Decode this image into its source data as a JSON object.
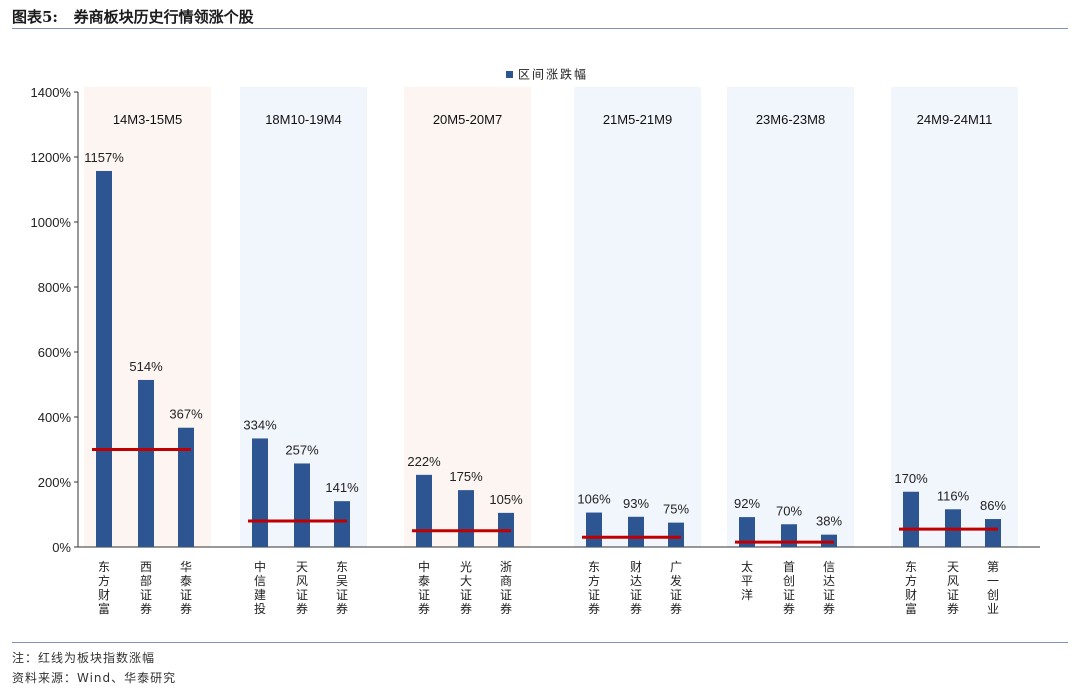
{
  "header": {
    "title": "图表5:   券商板块历史行情领涨个股"
  },
  "footer": {
    "note": "注：红线为板块指数涨幅",
    "source": "资料来源：Wind、华泰研究"
  },
  "colors": {
    "bar": "#2c5592",
    "index_line": "#c00000",
    "rule": "#7f95b7"
  },
  "chart_data": {
    "type": "bar",
    "legend": {
      "label": "区间涨跌幅",
      "position": "top-center"
    },
    "ylabel": "",
    "ylim": [
      0,
      1400
    ],
    "yticks": [
      0,
      200,
      400,
      600,
      800,
      1000,
      1200,
      1400
    ],
    "ytick_labels": [
      "0%",
      "200%",
      "400%",
      "600%",
      "800%",
      "1000%",
      "1200%",
      "1400%"
    ],
    "value_suffix": "%",
    "groups": [
      {
        "period": "14M3-15M5",
        "shade": "#fdf5f1",
        "index_change": 300,
        "stocks": [
          {
            "name": "东方财富",
            "value": 1157,
            "label": "1157%"
          },
          {
            "name": "西部证券",
            "value": 514,
            "label": "514%"
          },
          {
            "name": "华泰证券",
            "value": 367,
            "label": "367%"
          }
        ]
      },
      {
        "period": "18M10-19M4",
        "shade": "#f1f6fc",
        "index_change": 80,
        "stocks": [
          {
            "name": "中信建投",
            "value": 334,
            "label": "334%"
          },
          {
            "name": "天风证券",
            "value": 257,
            "label": "257%"
          },
          {
            "name": "东吴证券",
            "value": 141,
            "label": "141%"
          }
        ]
      },
      {
        "period": "20M5-20M7",
        "shade": "#fdf5f1",
        "index_change": 50,
        "stocks": [
          {
            "name": "中泰证券",
            "value": 222,
            "label": "222%"
          },
          {
            "name": "光大证券",
            "value": 175,
            "label": "175%"
          },
          {
            "name": "浙商证券",
            "value": 105,
            "label": "105%"
          }
        ]
      },
      {
        "period": "21M5-21M9",
        "shade": "#f1f6fc",
        "index_change": 30,
        "stocks": [
          {
            "name": "东方证券",
            "value": 106,
            "label": "106%"
          },
          {
            "name": "财达证券",
            "value": 93,
            "label": "93%"
          },
          {
            "name": "广发证券",
            "value": 75,
            "label": "75%"
          }
        ]
      },
      {
        "period": "23M6-23M8",
        "shade": "#f1f6fc",
        "index_change": 15,
        "stocks": [
          {
            "name": "太平洋",
            "value": 92,
            "label": "92%"
          },
          {
            "name": "首创证券",
            "value": 70,
            "label": "70%"
          },
          {
            "name": "信达证券",
            "value": 38,
            "label": "38%"
          }
        ]
      },
      {
        "period": "24M9-24M11",
        "shade": "#f1f6fc",
        "index_change": 55,
        "stocks": [
          {
            "name": "东方财富",
            "value": 170,
            "label": "170%"
          },
          {
            "name": "天风证券",
            "value": 116,
            "label": "116%"
          },
          {
            "name": "第一创业",
            "value": 86,
            "label": "86%"
          }
        ]
      }
    ]
  }
}
